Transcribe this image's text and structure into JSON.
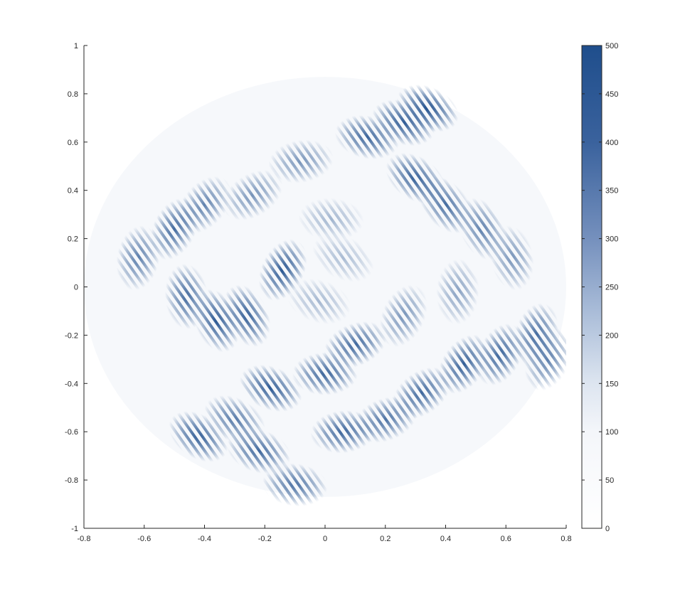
{
  "chart_data": {
    "type": "heatmap",
    "title": "",
    "xlabel": "",
    "ylabel": "",
    "xlim": [
      -0.8,
      0.8
    ],
    "ylim": [
      -1,
      1
    ],
    "xticks": [
      "-0.8",
      "-0.6",
      "-0.4",
      "-0.2",
      "0",
      "0.2",
      "0.4",
      "0.6",
      "0.8"
    ],
    "yticks": [
      "1",
      "0.8",
      "0.6",
      "0.4",
      "0.2",
      "0",
      "-0.2",
      "-0.4",
      "-0.6",
      "-0.8",
      "-1"
    ],
    "colorbar": {
      "range": [
        0,
        500
      ],
      "ticks": [
        "500",
        "450",
        "400",
        "350",
        "300",
        "250",
        "200",
        "150",
        "100",
        "50",
        "0"
      ],
      "color_low": "#ffffff",
      "color_high": "#1f4e8c"
    },
    "field_extent": {
      "center": [
        0,
        0
      ],
      "radius_x": 0.8,
      "radius_y": 0.87
    },
    "grid": false,
    "blobs": [
      {
        "x": -0.36,
        "y": -0.14,
        "value": 480
      },
      {
        "x": -0.26,
        "y": -0.12,
        "value": 460
      },
      {
        "x": -0.46,
        "y": -0.04,
        "value": 420
      },
      {
        "x": -0.14,
        "y": 0.07,
        "value": 480
      },
      {
        "x": -0.5,
        "y": 0.24,
        "value": 420
      },
      {
        "x": -0.62,
        "y": 0.12,
        "value": 360
      },
      {
        "x": -0.4,
        "y": 0.34,
        "value": 350
      },
      {
        "x": -0.24,
        "y": 0.38,
        "value": 300
      },
      {
        "x": -0.08,
        "y": 0.52,
        "value": 300
      },
      {
        "x": 0.14,
        "y": 0.62,
        "value": 440
      },
      {
        "x": 0.26,
        "y": 0.68,
        "value": 470
      },
      {
        "x": 0.34,
        "y": 0.74,
        "value": 500
      },
      {
        "x": 0.3,
        "y": 0.45,
        "value": 460
      },
      {
        "x": 0.4,
        "y": 0.34,
        "value": 420
      },
      {
        "x": 0.52,
        "y": 0.24,
        "value": 360
      },
      {
        "x": 0.62,
        "y": 0.12,
        "value": 300
      },
      {
        "x": 0.44,
        "y": -0.02,
        "value": 260
      },
      {
        "x": 0.26,
        "y": -0.12,
        "value": 300
      },
      {
        "x": 0.1,
        "y": -0.24,
        "value": 430
      },
      {
        "x": 0.0,
        "y": -0.36,
        "value": 440
      },
      {
        "x": -0.18,
        "y": -0.42,
        "value": 470
      },
      {
        "x": -0.3,
        "y": -0.55,
        "value": 380
      },
      {
        "x": -0.42,
        "y": -0.62,
        "value": 460
      },
      {
        "x": -0.22,
        "y": -0.68,
        "value": 430
      },
      {
        "x": -0.1,
        "y": -0.82,
        "value": 400
      },
      {
        "x": 0.06,
        "y": -0.6,
        "value": 440
      },
      {
        "x": 0.2,
        "y": -0.55,
        "value": 400
      },
      {
        "x": 0.32,
        "y": -0.44,
        "value": 430
      },
      {
        "x": 0.46,
        "y": -0.32,
        "value": 460
      },
      {
        "x": 0.58,
        "y": -0.28,
        "value": 440
      },
      {
        "x": 0.7,
        "y": -0.2,
        "value": 420
      },
      {
        "x": 0.74,
        "y": -0.3,
        "value": 360
      },
      {
        "x": 0.02,
        "y": 0.28,
        "value": 200
      },
      {
        "x": 0.06,
        "y": 0.12,
        "value": 180
      },
      {
        "x": -0.02,
        "y": -0.06,
        "value": 190
      }
    ]
  }
}
